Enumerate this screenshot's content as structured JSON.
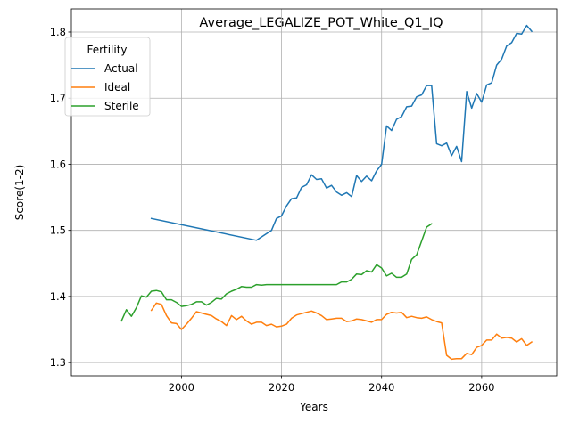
{
  "chart_data": {
    "type": "line",
    "title": "Average_LEGALIZE_POT_White_Q1_IQ",
    "xlabel": "Years",
    "ylabel": "Score(1-2)",
    "xlim": [
      1978,
      2075
    ],
    "ylim": [
      1.28,
      1.835
    ],
    "xticks": [
      2000,
      2020,
      2040,
      2060
    ],
    "yticks": [
      1.3,
      1.4,
      1.5,
      1.6,
      1.7,
      1.8
    ],
    "xtick_labels": [
      "2000",
      "2020",
      "2040",
      "2060"
    ],
    "ytick_labels": [
      "1.3",
      "1.4",
      "1.5",
      "1.6",
      "1.7",
      "1.8"
    ],
    "grid": true,
    "legend": {
      "title": "Fertility",
      "position": "upper-left"
    },
    "series": [
      {
        "name": "Actual",
        "color": "#1f77b4",
        "x": [
          1994,
          2015,
          2017,
          2018,
          2019,
          2020,
          2021,
          2022,
          2023,
          2024,
          2025,
          2026,
          2027,
          2028,
          2029,
          2030,
          2031,
          2032,
          2033,
          2034,
          2035,
          2036,
          2037,
          2038,
          2039,
          2040,
          2041,
          2042,
          2043,
          2044,
          2045,
          2046,
          2047,
          2048,
          2049,
          2050,
          2051,
          2052,
          2053,
          2054,
          2055,
          2056,
          2057,
          2058,
          2059,
          2060,
          2061,
          2062,
          2063,
          2064,
          2065,
          2066,
          2067,
          2068,
          2069,
          2070
        ],
        "y": [
          1.518,
          1.485,
          1.495,
          1.5,
          1.518,
          1.522,
          1.537,
          1.548,
          1.549,
          1.565,
          1.569,
          1.584,
          1.577,
          1.578,
          1.564,
          1.568,
          1.558,
          1.553,
          1.557,
          1.551,
          1.583,
          1.574,
          1.582,
          1.575,
          1.59,
          1.6,
          1.658,
          1.651,
          1.668,
          1.672,
          1.687,
          1.688,
          1.702,
          1.705,
          1.719,
          1.719,
          1.631,
          1.628,
          1.632,
          1.613,
          1.627,
          1.604,
          1.71,
          1.685,
          1.707,
          1.694,
          1.72,
          1.723,
          1.75,
          1.759,
          1.779,
          1.784,
          1.798,
          1.797,
          1.81,
          1.801
        ]
      },
      {
        "name": "Ideal",
        "color": "#ff7f0e",
        "x": [
          1994,
          1995,
          1996,
          1997,
          1998,
          1999,
          2000,
          2001,
          2002,
          2003,
          2004,
          2005,
          2006,
          2007,
          2008,
          2009,
          2010,
          2011,
          2012,
          2013,
          2014,
          2015,
          2016,
          2017,
          2018,
          2019,
          2020,
          2021,
          2022,
          2023,
          2024,
          2025,
          2026,
          2027,
          2028,
          2029,
          2030,
          2031,
          2032,
          2033,
          2034,
          2035,
          2036,
          2037,
          2038,
          2039,
          2040,
          2041,
          2042,
          2043,
          2044,
          2045,
          2046,
          2047,
          2048,
          2049,
          2050,
          2051,
          2052,
          2053,
          2054,
          2055,
          2056,
          2057,
          2058,
          2059,
          2060,
          2061,
          2062,
          2063,
          2064,
          2065,
          2066,
          2067,
          2068,
          2069,
          2070
        ],
        "y": [
          1.379,
          1.39,
          1.388,
          1.371,
          1.36,
          1.359,
          1.35,
          1.358,
          1.367,
          1.377,
          1.375,
          1.373,
          1.371,
          1.366,
          1.362,
          1.356,
          1.371,
          1.365,
          1.37,
          1.363,
          1.358,
          1.361,
          1.361,
          1.356,
          1.358,
          1.354,
          1.355,
          1.358,
          1.367,
          1.372,
          1.374,
          1.376,
          1.378,
          1.375,
          1.371,
          1.365,
          1.366,
          1.367,
          1.367,
          1.362,
          1.363,
          1.366,
          1.365,
          1.363,
          1.361,
          1.365,
          1.365,
          1.373,
          1.376,
          1.375,
          1.376,
          1.368,
          1.37,
          1.368,
          1.367,
          1.369,
          1.365,
          1.362,
          1.36,
          1.311,
          1.305,
          1.306,
          1.306,
          1.314,
          1.312,
          1.323,
          1.326,
          1.334,
          1.334,
          1.343,
          1.337,
          1.338,
          1.337,
          1.331,
          1.336,
          1.326,
          1.331
        ]
      },
      {
        "name": "Sterile",
        "color": "#2ca02c",
        "x": [
          1988,
          1989,
          1990,
          1991,
          1992,
          1993,
          1994,
          1995,
          1996,
          1997,
          1998,
          1999,
          2000,
          2001,
          2002,
          2003,
          2004,
          2005,
          2006,
          2007,
          2008,
          2009,
          2010,
          2011,
          2012,
          2013,
          2014,
          2015,
          2016,
          2017,
          2018,
          2019,
          2020,
          2021,
          2022,
          2023,
          2024,
          2025,
          2026,
          2027,
          2028,
          2029,
          2030,
          2031,
          2032,
          2033,
          2034,
          2035,
          2036,
          2037,
          2038,
          2039,
          2040,
          2041,
          2042,
          2043,
          2044,
          2045,
          2046,
          2047,
          2048,
          2049,
          2050
        ],
        "y": [
          1.363,
          1.38,
          1.37,
          1.383,
          1.401,
          1.399,
          1.408,
          1.409,
          1.407,
          1.395,
          1.395,
          1.391,
          1.385,
          1.386,
          1.388,
          1.392,
          1.392,
          1.387,
          1.391,
          1.397,
          1.396,
          1.404,
          1.408,
          1.411,
          1.415,
          1.414,
          1.414,
          1.418,
          1.417,
          1.418,
          1.418,
          1.418,
          1.418,
          1.418,
          1.418,
          1.418,
          1.418,
          1.418,
          1.418,
          1.418,
          1.418,
          1.418,
          1.418,
          1.418,
          1.422,
          1.422,
          1.426,
          1.434,
          1.433,
          1.439,
          1.437,
          1.448,
          1.443,
          1.431,
          1.435,
          1.429,
          1.429,
          1.434,
          1.456,
          1.463,
          1.484,
          1.505,
          1.51
        ]
      }
    ]
  }
}
